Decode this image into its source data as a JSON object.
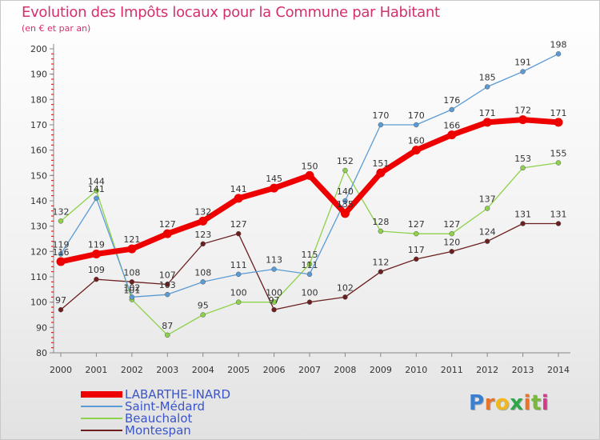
{
  "title": "Evolution des Impôts locaux pour la Commune par Habitant",
  "subtitle": "(en € et par an)",
  "logo": "Proxiti",
  "colors": {
    "title": "#d4306e",
    "logo": [
      "#3b7fd0",
      "#e8732a",
      "#f0b81c",
      "#2ea64a",
      "#e8732a",
      "#7ab83d",
      "#d43a8a"
    ]
  },
  "chart_data": {
    "type": "line",
    "x": [
      "2000",
      "2001",
      "2002",
      "2003",
      "2004",
      "2005",
      "2006",
      "2007",
      "2008",
      "2009",
      "2010",
      "2011",
      "2012",
      "2013",
      "2014"
    ],
    "ylim": [
      80,
      200
    ],
    "yticks": [
      80,
      90,
      100,
      110,
      120,
      130,
      140,
      150,
      160,
      170,
      180,
      190,
      200
    ],
    "grid": false,
    "legend": "bottom-left",
    "series": [
      {
        "name": "LABARTHE-INARD",
        "color": "#ee0000",
        "values": [
          116,
          119,
          121,
          127,
          132,
          141,
          145,
          150,
          135,
          151,
          160,
          166,
          171,
          172,
          171
        ]
      },
      {
        "name": "Saint-Médard",
        "color": "#5b9bd5",
        "values": [
          119,
          141,
          102,
          103,
          108,
          111,
          113,
          111,
          140,
          170,
          170,
          176,
          185,
          191,
          198
        ]
      },
      {
        "name": "Beauchalot",
        "color": "#8ed14a",
        "values": [
          132,
          144,
          101,
          87,
          95,
          100,
          100,
          115,
          152,
          128,
          127,
          127,
          137,
          153,
          155
        ]
      },
      {
        "name": "Montespan",
        "color": "#6b1f1f",
        "values": [
          97,
          109,
          108,
          107,
          123,
          127,
          97,
          100,
          102,
          112,
          117,
          120,
          124,
          131,
          131
        ]
      }
    ]
  }
}
